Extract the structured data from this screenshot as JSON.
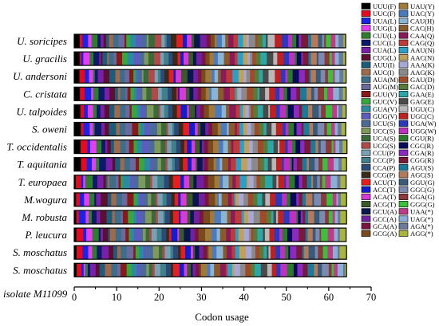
{
  "chart_data": {
    "type": "bar",
    "orientation": "horizontal-stacked",
    "xlabel": "Codon usage",
    "xlim": [
      0,
      70
    ],
    "xticks": [
      0,
      10,
      20,
      30,
      40,
      50,
      60,
      70
    ],
    "grid": false,
    "legend_placement": "right",
    "categories": [
      "U. soricipes",
      "U. gracilis",
      "U. andersoni",
      "C. cristata",
      "U. talpoides",
      "S. oweni",
      "T. occidentalis",
      "T. aquitania",
      "T. europaea",
      "M.wogura",
      "M. robusta",
      "P. leucura",
      "S. moschatus",
      "S. moschatus"
    ],
    "category_suffix_label": "isolate M11099",
    "totals": [
      64.0,
      64.0,
      64.1,
      64.1,
      64.1,
      64.0,
      64.3,
      64.2,
      64.1,
      64.2,
      64.2,
      64.1,
      64.2,
      64.2
    ],
    "codon_series": [
      {
        "name": "UUU(F)",
        "color": "#000000"
      },
      {
        "name": "UUC(F)",
        "color": "#e8091e"
      },
      {
        "name": "UUA(L)",
        "color": "#1a24e6"
      },
      {
        "name": "UUG(L)",
        "color": "#e43ef0"
      },
      {
        "name": "CUU(L)",
        "color": "#2d7d2d"
      },
      {
        "name": "CUC(L)",
        "color": "#0d1a6b"
      },
      {
        "name": "CUA(L)",
        "color": "#7a1fa8"
      },
      {
        "name": "CUG(L)",
        "color": "#5c0f2e"
      },
      {
        "name": "AUU(I)",
        "color": "#1b5c7a"
      },
      {
        "name": "AUC(I)",
        "color": "#a06a4a"
      },
      {
        "name": "AUA(M)",
        "color": "#3c6d8a"
      },
      {
        "name": "AUG(M)",
        "color": "#6a6a9e"
      },
      {
        "name": "GUU(V)",
        "color": "#8a1a1a"
      },
      {
        "name": "GUC(V)",
        "color": "#34a83c"
      },
      {
        "name": "GUA(V)",
        "color": "#2c8aa0"
      },
      {
        "name": "GUG(V)",
        "color": "#5c5cc0"
      },
      {
        "name": "UCU(S)",
        "color": "#4a6a9a"
      },
      {
        "name": "UCC(S)",
        "color": "#7d9a5a"
      },
      {
        "name": "UCA(S)",
        "color": "#3a6a3a"
      },
      {
        "name": "UCG(S)",
        "color": "#b04a4a"
      },
      {
        "name": "CCU(P)",
        "color": "#7aa0b4"
      },
      {
        "name": "CCC(P)",
        "color": "#40808a"
      },
      {
        "name": "CCA(P)",
        "color": "#2a4a7a"
      },
      {
        "name": "CCG(P)",
        "color": "#3a2a1a"
      },
      {
        "name": "ACU(T)",
        "color": "#e81e1e"
      },
      {
        "name": "ACC(T)",
        "color": "#0f1fcf"
      },
      {
        "name": "ACA(T)",
        "color": "#d83ad8"
      },
      {
        "name": "ACG(T)",
        "color": "#3a5a2a"
      },
      {
        "name": "GCU(A)",
        "color": "#0a1650"
      },
      {
        "name": "GCC(A)",
        "color": "#7020a0"
      },
      {
        "name": "GCA(A)",
        "color": "#7a1440"
      },
      {
        "name": "GCG(A)",
        "color": "#7a4a1a"
      },
      {
        "name": "UAU(Y)",
        "color": "#a07a3a"
      },
      {
        "name": "UAC(Y)",
        "color": "#4a7ac0"
      },
      {
        "name": "CAU(H)",
        "color": "#8ab4d4"
      },
      {
        "name": "CAC(H)",
        "color": "#8a5a2a"
      },
      {
        "name": "CAA(Q)",
        "color": "#8a1a5a"
      },
      {
        "name": "CAG(Q)",
        "color": "#c03a3a"
      },
      {
        "name": "AAU(N)",
        "color": "#2aa0c8"
      },
      {
        "name": "AAC(N)",
        "color": "#c0a05a"
      },
      {
        "name": "AAA(K)",
        "color": "#a8a8d8"
      },
      {
        "name": "AAG(K)",
        "color": "#8a8a8a"
      },
      {
        "name": "GAU(D)",
        "color": "#a04a2a"
      },
      {
        "name": "GAC(D)",
        "color": "#5a7a3a"
      },
      {
        "name": "GAA(E)",
        "color": "#2aa8a8"
      },
      {
        "name": "GAG(E)",
        "color": "#4a4a4a"
      },
      {
        "name": "UGU(C)",
        "color": "#b8b8b8"
      },
      {
        "name": "UGC(C)",
        "color": "#c02020"
      },
      {
        "name": "UGA(W)",
        "color": "#2a3ac0"
      },
      {
        "name": "UGG(W)",
        "color": "#c030c0"
      },
      {
        "name": "CGU(R)",
        "color": "#2a7a2a"
      },
      {
        "name": "CGC(R)",
        "color": "#0a0a5a"
      },
      {
        "name": "CGA(R)",
        "color": "#8a2ac0"
      },
      {
        "name": "CGG(R)",
        "color": "#7a1a3a"
      },
      {
        "name": "AGU(S)",
        "color": "#1a7a9a"
      },
      {
        "name": "AGC(S)",
        "color": "#b47a5a"
      },
      {
        "name": "GGU(G)",
        "color": "#3a5a7a"
      },
      {
        "name": "GGC(G)",
        "color": "#7a8ab0"
      },
      {
        "name": "GGA(G)",
        "color": "#8a3a3a"
      },
      {
        "name": "GGG(G)",
        "color": "#3ac03a"
      },
      {
        "name": "UAA(*)",
        "color": "#c03a8a"
      },
      {
        "name": "UAG(*)",
        "color": "#8ab0d8"
      },
      {
        "name": "AGA(*)",
        "color": "#6a7a9a"
      },
      {
        "name": "AGG(*)",
        "color": "#a8b43a"
      }
    ]
  }
}
